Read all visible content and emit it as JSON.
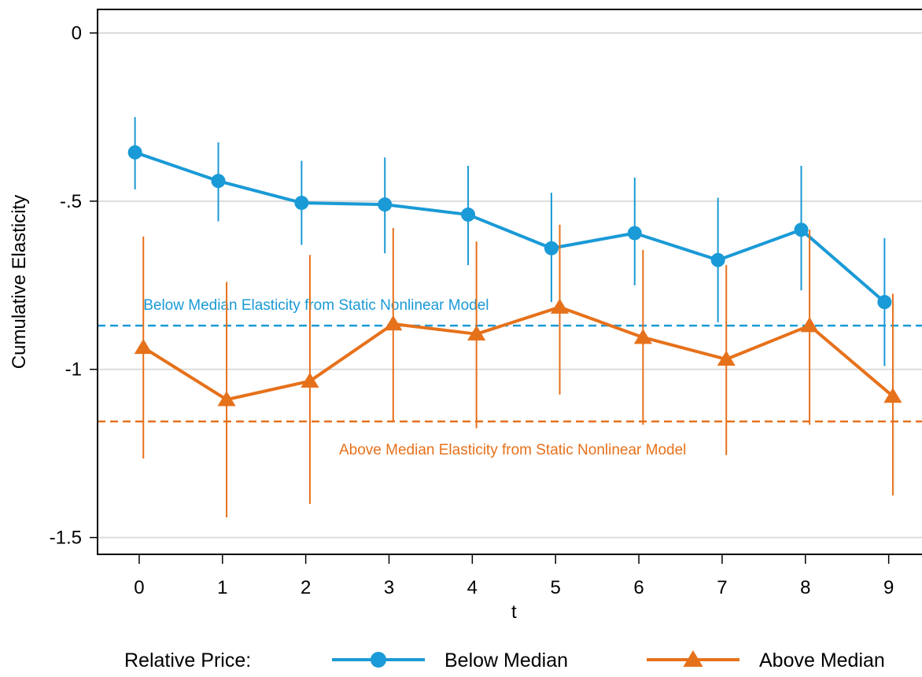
{
  "chart_data": {
    "type": "line",
    "title": "",
    "xlabel": "t",
    "ylabel": "Cumulative Elasticity",
    "xlim": [
      -0.5,
      9.4
    ],
    "ylim": [
      -1.55,
      0.07
    ],
    "x_ticks": [
      0,
      1,
      2,
      3,
      4,
      5,
      6,
      7,
      8,
      9
    ],
    "x_tick_labels": [
      "0",
      "1",
      "2",
      "3",
      "4",
      "5",
      "6",
      "7",
      "8",
      "9"
    ],
    "y_ticks": [
      0,
      -0.5,
      -1,
      -1.5
    ],
    "y_tick_labels": [
      "0",
      "-.5",
      "-1",
      "-1.5"
    ],
    "grid": "horizontal",
    "series": [
      {
        "name": "Below Median",
        "color": "#1a9ad6",
        "marker": "circle",
        "x": [
          -0.05,
          0.95,
          1.95,
          2.95,
          3.95,
          4.95,
          5.95,
          6.95,
          7.95,
          8.95
        ],
        "values": [
          -0.355,
          -0.44,
          -0.505,
          -0.51,
          -0.54,
          -0.64,
          -0.595,
          -0.675,
          -0.585,
          -0.8
        ],
        "ci_low": [
          -0.465,
          -0.56,
          -0.63,
          -0.655,
          -0.69,
          -0.8,
          -0.75,
          -0.86,
          -0.765,
          -0.99
        ],
        "ci_high": [
          -0.25,
          -0.325,
          -0.38,
          -0.37,
          -0.395,
          -0.475,
          -0.43,
          -0.49,
          -0.395,
          -0.61
        ]
      },
      {
        "name": "Above Median",
        "color": "#e6711b",
        "marker": "triangle",
        "x": [
          0.05,
          1.05,
          2.05,
          3.05,
          4.05,
          5.05,
          6.05,
          7.05,
          8.05,
          9.05
        ],
        "values": [
          -0.935,
          -1.09,
          -1.035,
          -0.865,
          -0.895,
          -0.815,
          -0.905,
          -0.97,
          -0.87,
          -1.08
        ],
        "ci_low": [
          -1.265,
          -1.44,
          -1.4,
          -1.155,
          -1.175,
          -1.075,
          -1.165,
          -1.255,
          -1.165,
          -1.375
        ],
        "ci_high": [
          -0.605,
          -0.74,
          -0.66,
          -0.58,
          -0.62,
          -0.57,
          -0.645,
          -0.69,
          -0.585,
          -0.775
        ]
      }
    ],
    "reference_lines": [
      {
        "y": -0.87,
        "color": "#1a9ad6",
        "label": "Below Median Elasticity from Static Nonlinear Model",
        "label_x": 0.05,
        "label_position": "above"
      },
      {
        "y": -1.155,
        "color": "#e6711b",
        "label": "Above Median Elasticity from Static Nonlinear Model",
        "label_x": 2.4,
        "label_position": "below"
      }
    ],
    "legend": {
      "position": "bottom",
      "title": "Relative Price:",
      "entries": [
        "Below Median",
        "Above Median"
      ]
    }
  }
}
